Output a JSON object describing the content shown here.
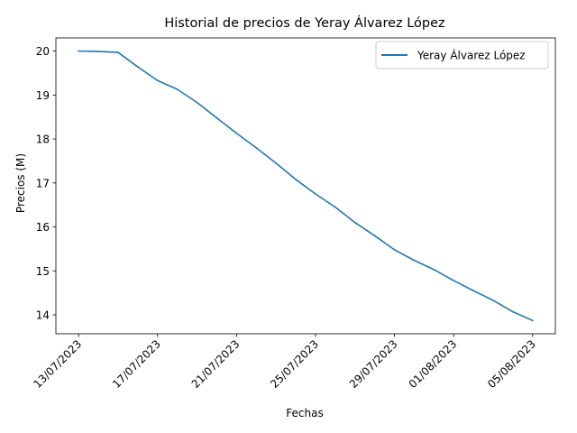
{
  "chart_data": {
    "type": "line",
    "title": "Historial de precios de Yeray Álvarez López",
    "xlabel": "Fechas",
    "ylabel": "Precios (M)",
    "x_tick_labels": [
      "13/07/2023",
      "17/07/2023",
      "21/07/2023",
      "25/07/2023",
      "29/07/2023",
      "01/08/2023",
      "05/08/2023"
    ],
    "x_tick_days": [
      0,
      4,
      8,
      12,
      16,
      19,
      23
    ],
    "y_ticks": [
      14,
      15,
      16,
      17,
      18,
      19,
      20
    ],
    "xlim": [
      -1.15,
      24.15
    ],
    "ylim": [
      13.57,
      20.3
    ],
    "grid": false,
    "legend_position": "top-right",
    "series": [
      {
        "name": "Yeray Álvarez López",
        "color": "#1f77b4",
        "x": [
          0,
          1,
          2,
          3,
          4,
          5,
          6,
          7,
          8,
          9,
          10,
          11,
          12,
          13,
          14,
          15,
          16,
          17,
          18,
          19,
          20,
          21,
          22,
          23
        ],
        "values": [
          20.0,
          19.99,
          19.97,
          19.64,
          19.33,
          19.13,
          18.83,
          18.48,
          18.13,
          17.8,
          17.45,
          17.08,
          16.75,
          16.45,
          16.1,
          15.8,
          15.48,
          15.24,
          15.03,
          14.78,
          14.55,
          14.33,
          14.07,
          13.87
        ]
      }
    ]
  }
}
